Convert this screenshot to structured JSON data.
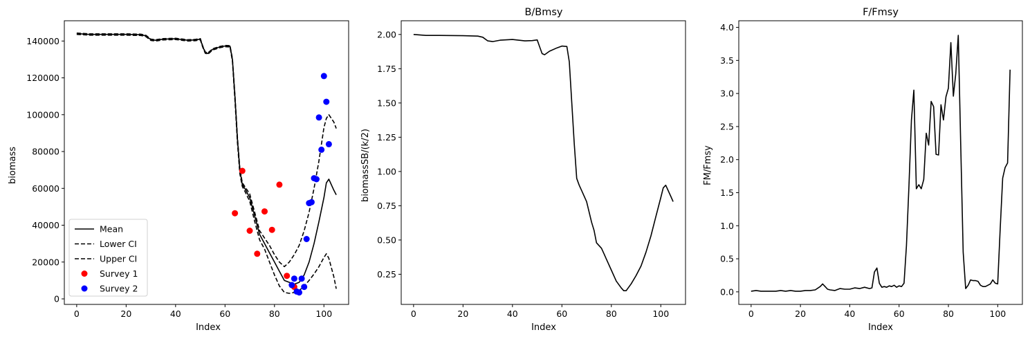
{
  "chart_data": [
    {
      "type": "line",
      "title": "",
      "xlabel": "Index",
      "ylabel": "biomass",
      "xlim": [
        -5,
        110
      ],
      "ylim": [
        -3000,
        151000
      ],
      "xticks": [
        0,
        20,
        40,
        60,
        80,
        100
      ],
      "yticks": [
        0,
        20000,
        40000,
        60000,
        80000,
        100000,
        120000,
        140000
      ],
      "legend": {
        "position": "lower-left",
        "entries": [
          "Mean",
          "Lower CI",
          "Upper CI",
          "Survey 1",
          "Survey 2"
        ]
      },
      "series": [
        {
          "name": "Mean",
          "style": "solid",
          "color": "#000000",
          "x": [
            0,
            5,
            10,
            20,
            26,
            28,
            30,
            32,
            35,
            40,
            45,
            48,
            50,
            51,
            52,
            53,
            55,
            58,
            60,
            62,
            63,
            64,
            65,
            66,
            67,
            68,
            70,
            72,
            74,
            76,
            78,
            80,
            82,
            84,
            86,
            88,
            90,
            92,
            94,
            96,
            98,
            100,
            101,
            102,
            104,
            105
          ],
          "y": [
            144000,
            143600,
            143600,
            143600,
            143400,
            142800,
            140700,
            140400,
            141000,
            141200,
            140400,
            140600,
            141000,
            137000,
            133800,
            133200,
            135500,
            136800,
            137300,
            137200,
            130000,
            110000,
            87000,
            70000,
            62000,
            60000,
            55000,
            45000,
            35000,
            30000,
            25000,
            20000,
            15000,
            10000,
            9000,
            8000,
            9000,
            13000,
            20000,
            30000,
            42000,
            55000,
            63000,
            65000,
            59000,
            56500
          ]
        },
        {
          "name": "Lower CI",
          "style": "dashed",
          "color": "#000000",
          "x": [
            0,
            5,
            10,
            20,
            26,
            28,
            30,
            32,
            35,
            40,
            45,
            48,
            50,
            51,
            52,
            53,
            55,
            58,
            60,
            62,
            63,
            64,
            65,
            66,
            67,
            68,
            70,
            72,
            74,
            76,
            78,
            80,
            82,
            84,
            86,
            88,
            90,
            92,
            94,
            96,
            98,
            100,
            101,
            102,
            104,
            105
          ],
          "y": [
            143600,
            143200,
            143200,
            143200,
            143000,
            142400,
            140300,
            140000,
            140600,
            140800,
            140000,
            140200,
            140600,
            136600,
            133400,
            132800,
            135100,
            136400,
            136900,
            136800,
            129000,
            108000,
            85000,
            68000,
            61000,
            58500,
            53000,
            42000,
            32000,
            27000,
            20000,
            13000,
            7000,
            3500,
            3000,
            3500,
            4500,
            7000,
            10000,
            13500,
            17500,
            22500,
            24500,
            22000,
            12000,
            5500
          ]
        },
        {
          "name": "Upper CI",
          "style": "dashed",
          "color": "#000000",
          "x": [
            0,
            5,
            10,
            20,
            26,
            28,
            30,
            32,
            35,
            40,
            45,
            48,
            50,
            51,
            52,
            53,
            55,
            58,
            60,
            62,
            63,
            64,
            65,
            66,
            67,
            68,
            70,
            72,
            74,
            76,
            78,
            80,
            82,
            84,
            86,
            88,
            90,
            92,
            94,
            96,
            98,
            100,
            101,
            102,
            104,
            105
          ],
          "y": [
            144300,
            143900,
            143900,
            143900,
            143700,
            143100,
            141000,
            140700,
            141300,
            141500,
            140700,
            140900,
            141300,
            137300,
            134100,
            133500,
            135800,
            137100,
            137600,
            137500,
            130500,
            111000,
            88000,
            71000,
            63000,
            61000,
            57000,
            47000,
            37000,
            33000,
            29000,
            24000,
            20000,
            17500,
            20000,
            24000,
            29000,
            37000,
            47000,
            60000,
            75000,
            93000,
            98000,
            100000,
            96000,
            92500
          ]
        }
      ],
      "scatter": [
        {
          "name": "Survey 1",
          "color": "#ff0000",
          "points": [
            [
              64,
              46500
            ],
            [
              67,
              69500
            ],
            [
              70,
              37000
            ],
            [
              73,
              24500
            ],
            [
              76,
              47500
            ],
            [
              79,
              37500
            ],
            [
              82,
              62000
            ],
            [
              85,
              12500
            ],
            [
              88,
              6500
            ]
          ]
        },
        {
          "name": "Survey 2",
          "color": "#0000ff",
          "points": [
            [
              87,
              7500
            ],
            [
              88,
              11000
            ],
            [
              89,
              4000
            ],
            [
              90,
              3500
            ],
            [
              91,
              11000
            ],
            [
              92,
              6500
            ],
            [
              93,
              32500
            ],
            [
              94,
              52000
            ],
            [
              95,
              52500
            ],
            [
              96,
              65500
            ],
            [
              97,
              65000
            ],
            [
              98,
              98500
            ],
            [
              99,
              81000
            ],
            [
              100,
              121000
            ],
            [
              101,
              107000
            ],
            [
              102,
              84000
            ]
          ]
        }
      ]
    },
    {
      "type": "line",
      "title": "B/Bmsy",
      "xlabel": "Index",
      "ylabel": "biomassSB/(k/2)",
      "xlim": [
        -5,
        110
      ],
      "ylim": [
        0.03,
        2.1
      ],
      "xticks": [
        0,
        20,
        40,
        60,
        80,
        100
      ],
      "yticks": [
        0.25,
        0.5,
        0.75,
        1.0,
        1.25,
        1.5,
        1.75,
        2.0
      ],
      "ytick_labels": [
        "0.25",
        "0.50",
        "0.75",
        "1.00",
        "1.25",
        "1.50",
        "1.75",
        "2.00"
      ],
      "series": [
        {
          "name": "",
          "style": "solid",
          "color": "#000000",
          "x": [
            0,
            5,
            10,
            20,
            26,
            28,
            30,
            32,
            35,
            40,
            45,
            48,
            50,
            51,
            52,
            53,
            55,
            58,
            60,
            62,
            63,
            64,
            65,
            66,
            67,
            68,
            70,
            72,
            73,
            74,
            76,
            77,
            78,
            80,
            82,
            84,
            85,
            86,
            88,
            90,
            92,
            94,
            96,
            98,
            100,
            101,
            102,
            104,
            105
          ],
          "y": [
            2.0,
            1.993,
            1.993,
            1.991,
            1.988,
            1.98,
            1.953,
            1.948,
            1.958,
            1.963,
            1.953,
            1.955,
            1.96,
            1.91,
            1.86,
            1.852,
            1.878,
            1.902,
            1.915,
            1.912,
            1.8,
            1.5,
            1.2,
            0.95,
            0.9,
            0.86,
            0.78,
            0.63,
            0.57,
            0.48,
            0.44,
            0.4,
            0.36,
            0.28,
            0.2,
            0.15,
            0.13,
            0.13,
            0.18,
            0.24,
            0.31,
            0.41,
            0.53,
            0.67,
            0.81,
            0.88,
            0.9,
            0.82,
            0.78
          ]
        }
      ]
    },
    {
      "type": "line",
      "title": "F/Fmsy",
      "xlabel": "Index",
      "ylabel": "FM/Fmsy",
      "xlim": [
        -5,
        110
      ],
      "ylim": [
        -0.19,
        4.1
      ],
      "xticks": [
        0,
        20,
        40,
        60,
        80,
        100
      ],
      "yticks": [
        0.0,
        0.5,
        1.0,
        1.5,
        2.0,
        2.5,
        3.0,
        3.5,
        4.0
      ],
      "ytick_labels": [
        "0.0",
        "0.5",
        "1.0",
        "1.5",
        "2.0",
        "2.5",
        "3.0",
        "3.5",
        "4.0"
      ],
      "series": [
        {
          "name": "",
          "style": "solid",
          "color": "#000000",
          "x": [
            0,
            2,
            4,
            6,
            8,
            10,
            12,
            14,
            16,
            18,
            20,
            22,
            24,
            26,
            28,
            29,
            30,
            31,
            32,
            34,
            36,
            38,
            40,
            42,
            44,
            46,
            48,
            49,
            50,
            51,
            52,
            53,
            54,
            55,
            56,
            57,
            58,
            59,
            60,
            61,
            62,
            63,
            64,
            65,
            66,
            67,
            68,
            69,
            70,
            71,
            72,
            73,
            74,
            75,
            76,
            77,
            78,
            79,
            80,
            81,
            82,
            83,
            84,
            85,
            86,
            87,
            88,
            89,
            90,
            91,
            92,
            93,
            94,
            95,
            96,
            97,
            98,
            99,
            100,
            101,
            102,
            103,
            104,
            105
          ],
          "y": [
            0.01,
            0.02,
            0.01,
            0.01,
            0.01,
            0.01,
            0.02,
            0.01,
            0.02,
            0.01,
            0.01,
            0.02,
            0.02,
            0.03,
            0.08,
            0.12,
            0.08,
            0.04,
            0.03,
            0.02,
            0.05,
            0.04,
            0.04,
            0.06,
            0.05,
            0.07,
            0.05,
            0.06,
            0.3,
            0.36,
            0.13,
            0.07,
            0.08,
            0.07,
            0.09,
            0.08,
            0.1,
            0.07,
            0.09,
            0.08,
            0.13,
            0.7,
            1.6,
            2.6,
            3.05,
            1.56,
            1.62,
            1.56,
            1.7,
            2.4,
            2.22,
            2.88,
            2.8,
            2.08,
            2.07,
            2.83,
            2.6,
            2.95,
            3.08,
            3.77,
            2.96,
            3.3,
            3.88,
            2.2,
            0.6,
            0.05,
            0.1,
            0.18,
            0.17,
            0.17,
            0.16,
            0.1,
            0.08,
            0.08,
            0.1,
            0.12,
            0.18,
            0.13,
            0.12,
            0.95,
            1.72,
            1.88,
            1.95,
            3.36
          ]
        }
      ]
    }
  ]
}
